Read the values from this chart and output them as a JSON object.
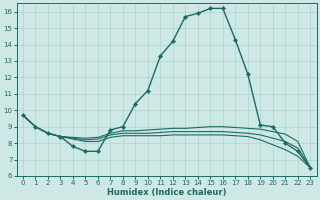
{
  "xlabel": "Humidex (Indice chaleur)",
  "xlim": [
    -0.5,
    23.5
  ],
  "ylim": [
    6,
    16.5
  ],
  "xticks": [
    0,
    1,
    2,
    3,
    4,
    5,
    6,
    7,
    8,
    9,
    10,
    11,
    12,
    13,
    14,
    15,
    16,
    17,
    18,
    19,
    20,
    21,
    22,
    23
  ],
  "yticks": [
    6,
    7,
    8,
    9,
    10,
    11,
    12,
    13,
    14,
    15,
    16
  ],
  "bg_color": "#cde8e5",
  "grid_color": "#aed4d0",
  "line_color": "#1a6b63",
  "lines": [
    {
      "x": [
        0,
        1,
        2,
        3,
        4,
        5,
        6,
        7,
        8,
        9,
        10,
        11,
        12,
        13,
        14,
        15,
        16,
        17,
        18,
        19,
        20,
        21,
        22,
        23
      ],
      "y": [
        9.7,
        9.0,
        8.6,
        8.4,
        7.8,
        7.5,
        7.5,
        8.8,
        9.0,
        10.4,
        11.2,
        13.3,
        14.2,
        15.7,
        15.9,
        16.2,
        16.2,
        14.3,
        12.2,
        9.1,
        9.0,
        8.0,
        7.5,
        6.5
      ],
      "marker": true
    },
    {
      "x": [
        0,
        1,
        2,
        3,
        4,
        5,
        6,
        7,
        8,
        9,
        10,
        11,
        12,
        13,
        14,
        15,
        16,
        17,
        18,
        19,
        20,
        21,
        22,
        23
      ],
      "y": [
        9.7,
        9.0,
        8.6,
        8.4,
        8.35,
        8.3,
        8.35,
        8.6,
        8.75,
        8.75,
        8.8,
        8.85,
        8.9,
        8.9,
        8.95,
        9.0,
        9.0,
        8.95,
        8.9,
        8.85,
        8.7,
        8.55,
        8.1,
        6.5
      ],
      "marker": false
    },
    {
      "x": [
        0,
        1,
        2,
        3,
        4,
        5,
        6,
        7,
        8,
        9,
        10,
        11,
        12,
        13,
        14,
        15,
        16,
        17,
        18,
        19,
        20,
        21,
        22,
        23
      ],
      "y": [
        9.7,
        9.0,
        8.6,
        8.4,
        8.3,
        8.2,
        8.25,
        8.5,
        8.6,
        8.6,
        8.6,
        8.65,
        8.7,
        8.7,
        8.7,
        8.7,
        8.7,
        8.65,
        8.6,
        8.5,
        8.3,
        8.1,
        7.7,
        6.5
      ],
      "marker": false
    },
    {
      "x": [
        0,
        1,
        2,
        3,
        4,
        5,
        6,
        7,
        8,
        9,
        10,
        11,
        12,
        13,
        14,
        15,
        16,
        17,
        18,
        19,
        20,
        21,
        22,
        23
      ],
      "y": [
        9.7,
        9.0,
        8.6,
        8.4,
        8.25,
        8.1,
        8.1,
        8.35,
        8.45,
        8.45,
        8.45,
        8.45,
        8.5,
        8.5,
        8.5,
        8.5,
        8.5,
        8.45,
        8.4,
        8.2,
        7.9,
        7.6,
        7.2,
        6.5
      ],
      "marker": false
    }
  ]
}
